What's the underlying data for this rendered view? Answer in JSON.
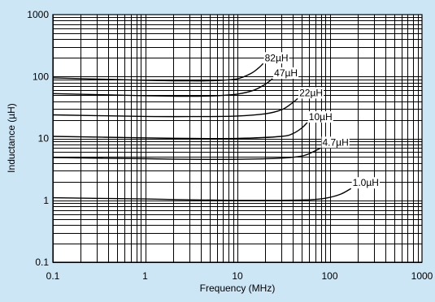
{
  "chart_data": {
    "type": "line",
    "title": "",
    "xlabel": "Frequency (MHz)",
    "ylabel": "Inductance (µH)",
    "xscale": "log",
    "yscale": "log",
    "xlim": [
      0.1,
      1000
    ],
    "ylim": [
      0.1,
      1000
    ],
    "grid": true,
    "x_ticks": [
      "0.1",
      "1",
      "10",
      "100",
      "1000"
    ],
    "y_ticks": [
      "0.1",
      "1",
      "10",
      "100",
      "1000"
    ],
    "series": [
      {
        "name": "82µH",
        "x": [
          0.1,
          1,
          3,
          6,
          10,
          14,
          17,
          19
        ],
        "y": [
          95,
          87,
          85,
          86,
          92,
          112,
          138,
          162
        ]
      },
      {
        "name": "47µH",
        "x": [
          0.1,
          1,
          3,
          6,
          10,
          15,
          20,
          24
        ],
        "y": [
          53,
          49,
          48,
          49,
          52,
          60,
          75,
          92
        ]
      },
      {
        "name": "22µH",
        "x": [
          0.1,
          1,
          3,
          10,
          20,
          30,
          38,
          45
        ],
        "y": [
          24,
          22.7,
          22.5,
          23,
          25,
          29,
          36,
          44
        ]
      },
      {
        "name": "10µH",
        "x": [
          0.1,
          1,
          3,
          10,
          30,
          40,
          50,
          57
        ],
        "y": [
          10.8,
          10.2,
          10,
          10,
          10.8,
          12,
          14.8,
          18
        ]
      },
      {
        "name": "4.7µH",
        "x": [
          0.1,
          1,
          3,
          10,
          30,
          50,
          65,
          80
        ],
        "y": [
          4.9,
          4.7,
          4.6,
          4.6,
          4.8,
          5.2,
          6,
          7
        ]
      },
      {
        "name": "1.0µH",
        "x": [
          0.1,
          1,
          3,
          10,
          30,
          60,
          90,
          130,
          170
        ],
        "y": [
          1.1,
          1.05,
          1.02,
          1.0,
          1.0,
          1.02,
          1.08,
          1.25,
          1.55
        ]
      }
    ]
  }
}
